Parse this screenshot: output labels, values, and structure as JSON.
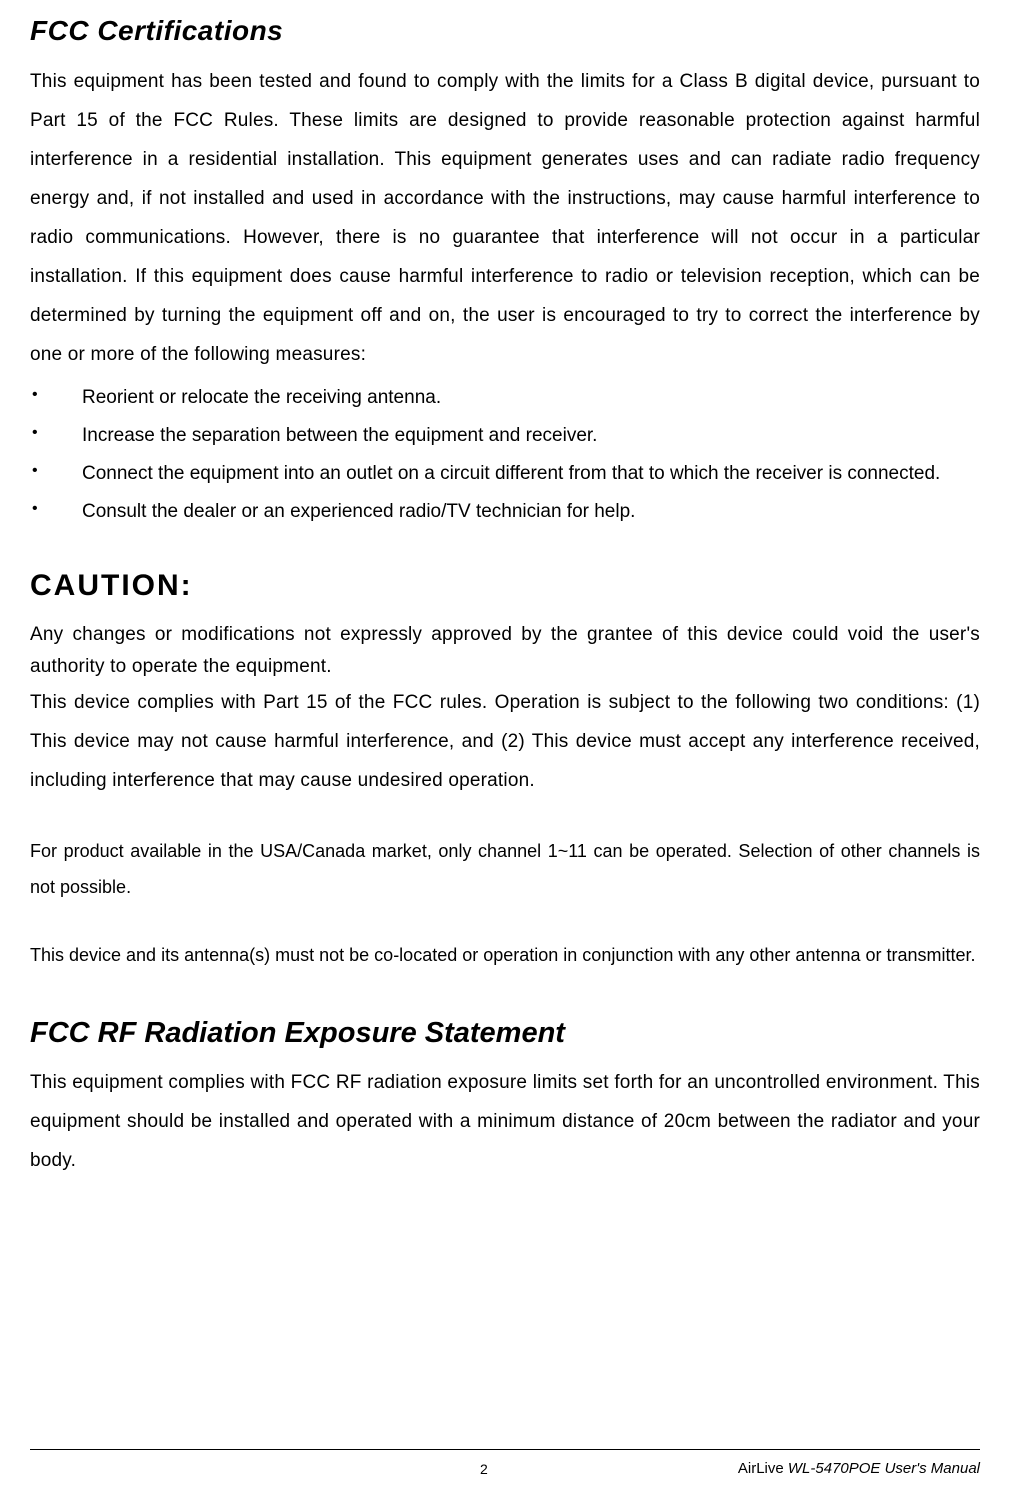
{
  "sections": {
    "fcc_cert": {
      "heading": "FCC Certifications",
      "paragraph": "This equipment has been tested and found to comply with the limits for a Class B digital device, pursuant to Part 15 of the FCC Rules.   These limits are designed to provide reasonable protection against harmful interference in a residential installation.   This equipment generates uses and can radiate radio frequency energy and, if not installed and used in accordance with the instructions, may cause harmful interference to radio communications.   However, there is no guarantee that interference will not occur in a particular installation.  If this equipment does cause harmful interference to radio or television reception, which can be determined by turning the equipment off and on, the user is encouraged to try to correct the interference by one or more of the following measures:",
      "bullets": [
        "Reorient or relocate the receiving antenna.",
        "Increase the separation between the equipment and receiver.",
        "Connect the equipment into an outlet on a circuit different from that to which the receiver is connected.",
        "Consult the dealer or an experienced radio/TV technician for help."
      ]
    },
    "caution": {
      "heading": "CAUTION:",
      "paragraph1": "Any changes or modifications not expressly approved by the grantee of this device could void the user's authority to operate the equipment.",
      "paragraph2": "This device complies with Part 15 of the FCC rules.  Operation is subject to the following two conditions:   (1) This device may not cause harmful interference, and (2) This device must accept any interference received, including interference that may cause undesired operation.",
      "note1": "For product available in the USA/Canada market, only channel 1~11 can be operated. Selection of other channels is not possible.",
      "note2": "This device and its antenna(s) must not be co-located or operation in conjunction with any other antenna or transmitter."
    },
    "rf_exposure": {
      "heading": "FCC RF Radiation Exposure Statement",
      "paragraph": "This equipment complies with FCC RF radiation exposure limits set forth for an uncontrolled environment. This equipment should be installed and operated with a minimum distance of 20cm between the radiator and your body."
    }
  },
  "footer": {
    "page_number": "2",
    "manual_brand": "AirLive ",
    "manual_model": "WL-5470POE User's Manual"
  },
  "colors": {
    "background": "#ffffff",
    "text": "#000000",
    "footer_line": "#000000"
  },
  "typography": {
    "body_fontsize": 19,
    "heading_fontsize": 28,
    "caution_fontsize": 30,
    "note_fontsize": 18,
    "footer_fontsize": 15
  }
}
